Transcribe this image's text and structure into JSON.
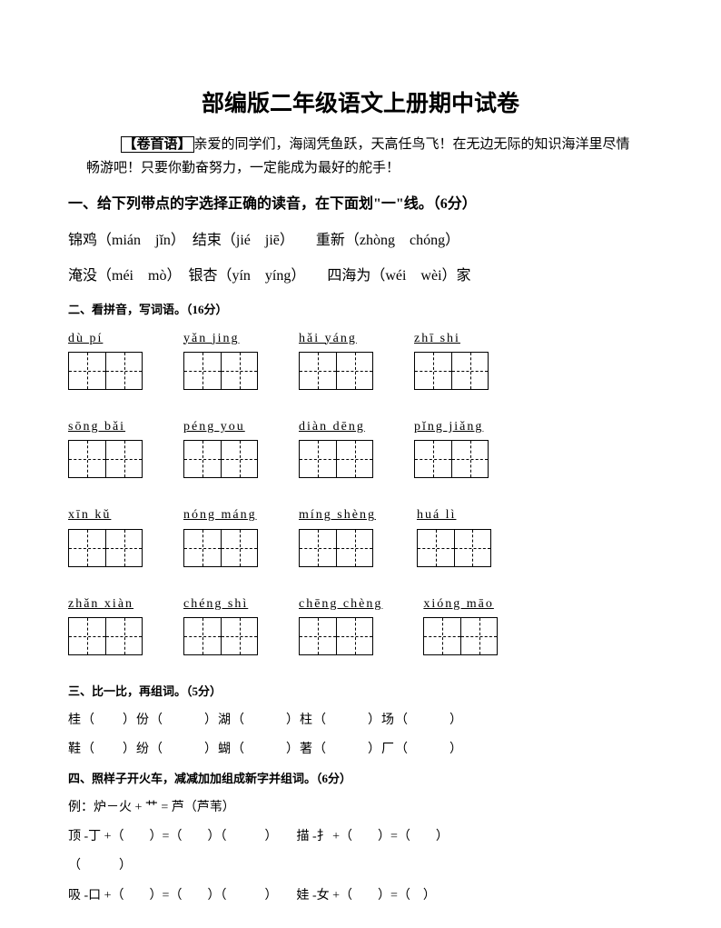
{
  "title": "部编版二年级语文上册期中试卷",
  "preface": {
    "label": "【卷首语】",
    "text": "亲爱的同学们，海阔凭鱼跃，天高任鸟飞！在无边无际的知识海洋里尽情畅游吧！只要你勤奋努力，一定能成为最好的舵手！"
  },
  "section1": {
    "heading": "一、给下列带点的字选择正确的读音，在下面划\"一\"线。（6分）",
    "line1": "锦鸡（mián　jǐn）　结束（jié　jiē）　　重新（zhòng　chóng）",
    "line2": "淹没（méi　mò）　银杏（yín　yíng）　　四海为（wéi　wèi）家"
  },
  "section2": {
    "heading": "二、看拼音，写词语。（16分）",
    "rows": [
      [
        "dù pí",
        "yǎn jing",
        "hǎi yáng",
        "zhī shi"
      ],
      [
        "sōng bǎi",
        "péng you",
        "diàn dēng",
        "pǐng jiǎng"
      ],
      [
        "xīn kǔ",
        "nóng máng",
        "míng shèng",
        "huá lì"
      ],
      [
        "zhǎn xiàn",
        "chéng shì",
        "chēng chèng",
        "xióng māo"
      ]
    ]
  },
  "section3": {
    "heading": "三、比一比，再组词。（5分）",
    "line1": "桂（　　）份（　　　）湖（　　　）柱（　　　）场（　　　）",
    "line2": "鞋（　　）纷（　　　）蝴（　　　）著（　　　）厂（　　　）"
  },
  "section4": {
    "heading": "四、照样子开火车，减减加加组成新字并组词。（6分）",
    "example": "例：炉－火 + 艹 = 芦（芦苇）",
    "line1a": "顶 -丁 +（　　）=（　　）（　　　）　　描 -扌 +（　　）=（　　）",
    "line1b": "（　　　）",
    "line2": "吸 -口 +（　　）=（　　）（　　　）　　娃 -女 +（　　）=（　）"
  }
}
